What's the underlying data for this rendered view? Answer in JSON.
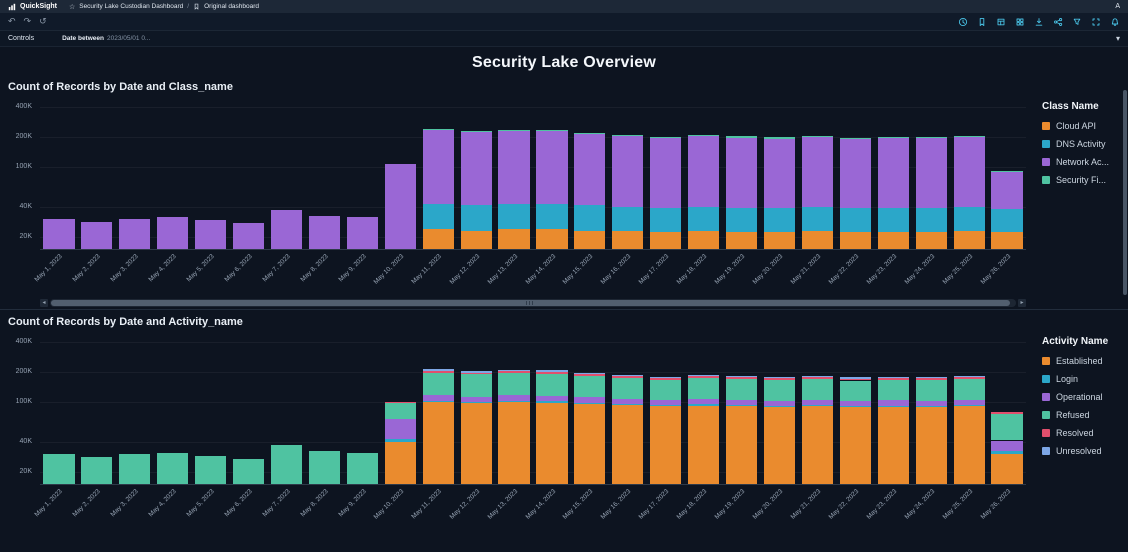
{
  "app": {
    "brand": "QuickSight",
    "breadcrumb": {
      "dashboard": "Security Lake Custodian Dashboard",
      "separator": "/",
      "view": "Original dashboard"
    },
    "avatar": "A"
  },
  "toolbar": {
    "left_icons": [
      {
        "name": "undo-icon",
        "glyph": "↶"
      },
      {
        "name": "redo-icon",
        "glyph": "↷"
      },
      {
        "name": "reset-icon",
        "glyph": "↺"
      }
    ],
    "right_icons": [
      {
        "name": "history-icon"
      },
      {
        "name": "bookmark-icon"
      },
      {
        "name": "table-icon"
      },
      {
        "name": "grid-icon"
      },
      {
        "name": "export-icon"
      },
      {
        "name": "share-icon"
      },
      {
        "name": "filter-icon"
      },
      {
        "name": "fullscreen-icon"
      },
      {
        "name": "notifications-icon"
      }
    ]
  },
  "controls": {
    "label": "Controls",
    "filter_name": "Date between",
    "filter_value": "2023/05/01 0...",
    "collapse_glyph": "▾"
  },
  "page_title": "Security Lake Overview",
  "chart_data": [
    {
      "type": "bar",
      "stacked": true,
      "title": "Count of Records by Date and Class_name",
      "legend_title": "Class Name",
      "legend_position": "right",
      "grid": false,
      "y_scale": "log",
      "ylim": [
        15000,
        480000
      ],
      "y_ticks": [
        {
          "label": "400K",
          "value": 400000
        },
        {
          "label": "200K",
          "value": 200000
        },
        {
          "label": "100K",
          "value": 100000
        },
        {
          "label": "40K",
          "value": 40000
        },
        {
          "label": "20K",
          "value": 20000
        }
      ],
      "categories": [
        "May 1, 2023",
        "May 2, 2023",
        "May 3, 2023",
        "May 4, 2023",
        "May 5, 2023",
        "May 6, 2023",
        "May 7, 2023",
        "May 8, 2023",
        "May 9, 2023",
        "May 10, 2023",
        "May 11, 2023",
        "May 12, 2023",
        "May 13, 2023",
        "May 14, 2023",
        "May 15, 2023",
        "May 16, 2023",
        "May 17, 2023",
        "May 18, 2023",
        "May 19, 2023",
        "May 20, 2023",
        "May 21, 2023",
        "May 22, 2023",
        "May 23, 2023",
        "May 24, 2023",
        "May 25, 2023",
        "May 26, 2023"
      ],
      "series": [
        {
          "name": "Cloud API",
          "color": "#ea8b2e",
          "values": [
            300,
            300,
            300,
            300,
            300,
            300,
            400,
            300,
            300,
            1000,
            24000,
            23000,
            24000,
            24000,
            23000,
            23000,
            22000,
            23000,
            22000,
            22000,
            23000,
            22000,
            22000,
            22000,
            23000,
            22000
          ]
        },
        {
          "name": "DNS Activity",
          "color": "#2ba7c9",
          "values": [
            2000,
            2000,
            2000,
            2000,
            2000,
            2000,
            2500,
            2000,
            2000,
            5000,
            18000,
            18000,
            18000,
            18000,
            18000,
            17000,
            17000,
            17000,
            17000,
            17000,
            17000,
            17000,
            17000,
            17000,
            17000,
            16000
          ]
        },
        {
          "name": "Network Ac...",
          "color": "#9a67d5",
          "values": [
            28000,
            26000,
            28000,
            29000,
            27000,
            25000,
            34000,
            30000,
            29000,
            100000,
            190000,
            183000,
            188000,
            186000,
            172000,
            165000,
            155000,
            163000,
            158000,
            153000,
            158000,
            152000,
            155000,
            154000,
            158000,
            50000
          ]
        },
        {
          "name": "Security Fi...",
          "color": "#4fc3a1",
          "values": [
            400,
            400,
            400,
            400,
            400,
            400,
            500,
            400,
            400,
            800,
            2000,
            2000,
            2000,
            2000,
            2000,
            2000,
            2000,
            2000,
            2000,
            2000,
            2000,
            2000,
            2000,
            2000,
            2000,
            1500
          ]
        }
      ]
    },
    {
      "type": "bar",
      "stacked": true,
      "title": "Count of Records by Date and Activity_name",
      "legend_title": "Activity Name",
      "legend_position": "right",
      "grid": false,
      "y_scale": "log",
      "ylim": [
        15000,
        480000
      ],
      "y_ticks": [
        {
          "label": "400K",
          "value": 400000
        },
        {
          "label": "200K",
          "value": 200000
        },
        {
          "label": "100K",
          "value": 100000
        },
        {
          "label": "40K",
          "value": 40000
        },
        {
          "label": "20K",
          "value": 20000
        }
      ],
      "categories": [
        "May 1, 2023",
        "May 2, 2023",
        "May 3, 2023",
        "May 4, 2023",
        "May 5, 2023",
        "May 6, 2023",
        "May 7, 2023",
        "May 8, 2023",
        "May 9, 2023",
        "May 10, 2023",
        "May 11, 2023",
        "May 12, 2023",
        "May 13, 2023",
        "May 14, 2023",
        "May 15, 2023",
        "May 16, 2023",
        "May 17, 2023",
        "May 18, 2023",
        "May 19, 2023",
        "May 20, 2023",
        "May 21, 2023",
        "May 22, 2023",
        "May 23, 2023",
        "May 24, 2023",
        "May 25, 2023",
        "May 26, 2023"
      ],
      "series": [
        {
          "name": "Established",
          "color": "#ea8b2e",
          "values": [
            500,
            500,
            500,
            500,
            500,
            500,
            600,
            500,
            500,
            40000,
            100000,
            97000,
            99000,
            98000,
            95000,
            93000,
            90000,
            92000,
            90000,
            88000,
            90000,
            88000,
            89000,
            88000,
            90000,
            30000
          ]
        },
        {
          "name": "Login",
          "color": "#2ba7c9",
          "values": [
            2000,
            2000,
            2000,
            2000,
            2000,
            2000,
            2500,
            2000,
            2000,
            2000,
            3000,
            3000,
            3000,
            3000,
            3000,
            3000,
            3000,
            3000,
            3000,
            3000,
            3000,
            3000,
            3000,
            3000,
            3000,
            2000
          ]
        },
        {
          "name": "Operational",
          "color": "#9a67d5",
          "values": [
            400,
            400,
            400,
            400,
            400,
            400,
            500,
            400,
            400,
            25000,
            14000,
            13000,
            14000,
            14000,
            13000,
            12000,
            12000,
            12000,
            12000,
            12000,
            12000,
            12000,
            12000,
            12000,
            12000,
            9000
          ]
        },
        {
          "name": "Refused",
          "color": "#4fc3a1",
          "values": [
            27000,
            25000,
            27000,
            28000,
            26000,
            24000,
            33000,
            29000,
            28000,
            30000,
            80000,
            76000,
            78000,
            77000,
            70000,
            66000,
            62000,
            66000,
            64000,
            62000,
            64000,
            61000,
            62000,
            62000,
            64000,
            35000
          ]
        },
        {
          "name": "Resolved",
          "color": "#e14f6d",
          "values": [
            500,
            500,
            500,
            500,
            500,
            500,
            600,
            500,
            500,
            3000,
            9000,
            8000,
            9000,
            9000,
            8000,
            8000,
            7000,
            8000,
            7000,
            7000,
            7000,
            7000,
            7000,
            7000,
            8000,
            3000
          ]
        },
        {
          "name": "Unresolved",
          "color": "#7da7e6",
          "values": [
            100,
            100,
            100,
            100,
            100,
            100,
            150,
            100,
            100,
            500,
            1500,
            1500,
            1500,
            1500,
            1500,
            1500,
            1200,
            1500,
            1200,
            1200,
            1200,
            1200,
            1200,
            1200,
            1500,
            800
          ]
        }
      ]
    }
  ]
}
